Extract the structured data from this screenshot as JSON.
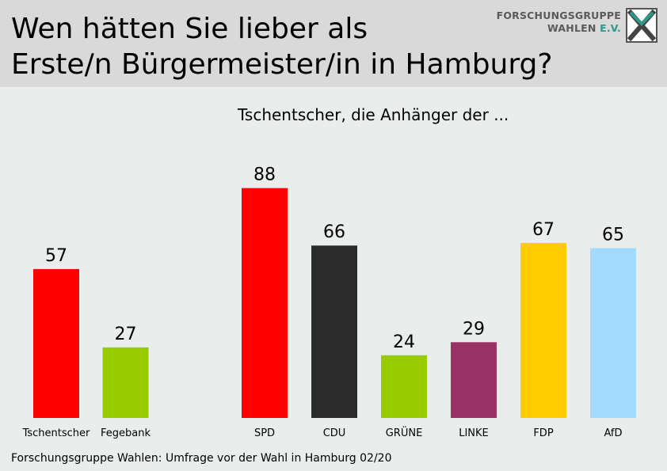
{
  "header": {
    "title_line1": "Wen hätten Sie lieber als",
    "title_line2": "Erste/n Bürgermeister/in in Hamburg?"
  },
  "logo": {
    "line1": "FORSCHUNGSGRUPPE",
    "line2_prefix": "WAHLEN ",
    "line2_suffix": "E.V."
  },
  "subtitle": "Tschentscher, die Anhänger der ...",
  "footer": "Forschungsgruppe Wahlen: Umfrage vor der Wahl in Hamburg 02/20",
  "chart_data": {
    "type": "bar",
    "groups": [
      {
        "categories": [
          "Tschentscher",
          "Fegebank"
        ],
        "values": [
          57,
          27
        ],
        "colors": [
          "#ff0000",
          "#99cc00"
        ]
      },
      {
        "categories": [
          "SPD",
          "CDU",
          "GRÜNE",
          "LINKE",
          "FDP",
          "AfD"
        ],
        "values": [
          88,
          66,
          24,
          29,
          67,
          65
        ],
        "colors": [
          "#ff0000",
          "#2b2b2b",
          "#99cc00",
          "#993366",
          "#ffcc00",
          "#a3daff"
        ]
      }
    ],
    "ylim": [
      0,
      100
    ],
    "grid": false,
    "legend": "none"
  }
}
